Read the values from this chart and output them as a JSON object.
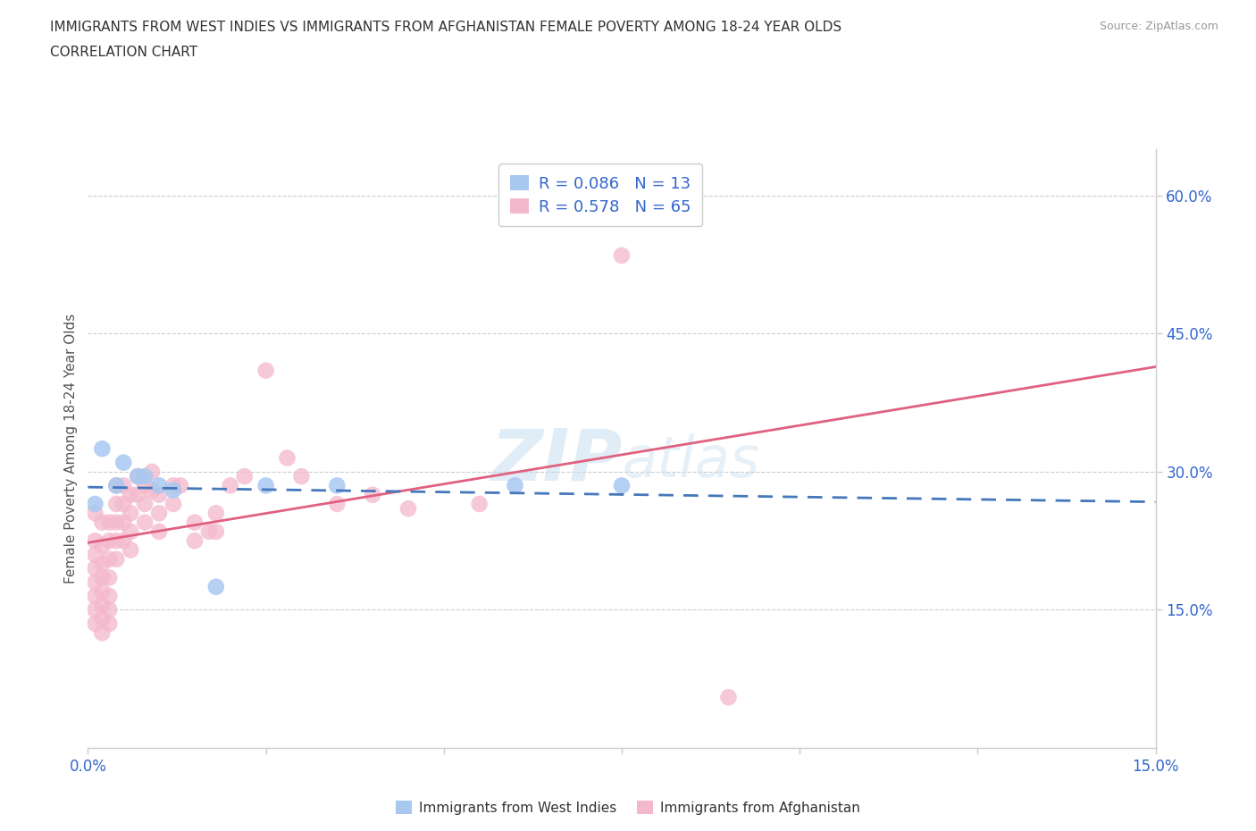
{
  "title_line1": "IMMIGRANTS FROM WEST INDIES VS IMMIGRANTS FROM AFGHANISTAN FEMALE POVERTY AMONG 18-24 YEAR OLDS",
  "title_line2": "CORRELATION CHART",
  "source": "Source: ZipAtlas.com",
  "ylabel": "Female Poverty Among 18-24 Year Olds",
  "xlim": [
    0.0,
    0.15
  ],
  "ylim": [
    0.0,
    0.65
  ],
  "xtick_positions": [
    0.0,
    0.025,
    0.05,
    0.075,
    0.1,
    0.125,
    0.15
  ],
  "xtick_labels": [
    "0.0%",
    "",
    "",
    "",
    "",
    "",
    "15.0%"
  ],
  "ytick_positions": [
    0.15,
    0.3,
    0.45,
    0.6
  ],
  "ytick_labels": [
    "15.0%",
    "30.0%",
    "45.0%",
    "60.0%"
  ],
  "west_indies_color": "#a8c8f0",
  "afghanistan_color": "#f4b8cc",
  "west_indies_line_color": "#4477bb",
  "afghanistan_line_color": "#e06080",
  "legend_color": "#3366cc",
  "R_west_indies": 0.086,
  "N_west_indies": 13,
  "R_afghanistan": 0.578,
  "N_afghanistan": 65,
  "west_indies_scatter": [
    [
      0.001,
      0.265
    ],
    [
      0.002,
      0.325
    ],
    [
      0.004,
      0.285
    ],
    [
      0.005,
      0.31
    ],
    [
      0.007,
      0.295
    ],
    [
      0.008,
      0.295
    ],
    [
      0.01,
      0.285
    ],
    [
      0.012,
      0.28
    ],
    [
      0.018,
      0.175
    ],
    [
      0.025,
      0.285
    ],
    [
      0.06,
      0.285
    ],
    [
      0.075,
      0.285
    ],
    [
      0.035,
      0.285
    ]
  ],
  "afghanistan_scatter": [
    [
      0.001,
      0.255
    ],
    [
      0.001,
      0.225
    ],
    [
      0.001,
      0.21
    ],
    [
      0.001,
      0.195
    ],
    [
      0.001,
      0.18
    ],
    [
      0.001,
      0.165
    ],
    [
      0.001,
      0.15
    ],
    [
      0.001,
      0.135
    ],
    [
      0.002,
      0.245
    ],
    [
      0.002,
      0.22
    ],
    [
      0.002,
      0.2
    ],
    [
      0.002,
      0.185
    ],
    [
      0.002,
      0.17
    ],
    [
      0.002,
      0.155
    ],
    [
      0.002,
      0.14
    ],
    [
      0.002,
      0.125
    ],
    [
      0.003,
      0.245
    ],
    [
      0.003,
      0.225
    ],
    [
      0.003,
      0.205
    ],
    [
      0.003,
      0.185
    ],
    [
      0.003,
      0.165
    ],
    [
      0.003,
      0.15
    ],
    [
      0.003,
      0.135
    ],
    [
      0.004,
      0.285
    ],
    [
      0.004,
      0.265
    ],
    [
      0.004,
      0.245
    ],
    [
      0.004,
      0.225
    ],
    [
      0.004,
      0.205
    ],
    [
      0.005,
      0.285
    ],
    [
      0.005,
      0.265
    ],
    [
      0.005,
      0.245
    ],
    [
      0.005,
      0.225
    ],
    [
      0.006,
      0.275
    ],
    [
      0.006,
      0.255
    ],
    [
      0.006,
      0.235
    ],
    [
      0.006,
      0.215
    ],
    [
      0.007,
      0.295
    ],
    [
      0.007,
      0.275
    ],
    [
      0.008,
      0.285
    ],
    [
      0.008,
      0.265
    ],
    [
      0.008,
      0.245
    ],
    [
      0.009,
      0.3
    ],
    [
      0.009,
      0.28
    ],
    [
      0.01,
      0.275
    ],
    [
      0.01,
      0.255
    ],
    [
      0.01,
      0.235
    ],
    [
      0.012,
      0.285
    ],
    [
      0.012,
      0.265
    ],
    [
      0.013,
      0.285
    ],
    [
      0.015,
      0.245
    ],
    [
      0.015,
      0.225
    ],
    [
      0.017,
      0.235
    ],
    [
      0.018,
      0.255
    ],
    [
      0.018,
      0.235
    ],
    [
      0.02,
      0.285
    ],
    [
      0.022,
      0.295
    ],
    [
      0.025,
      0.41
    ],
    [
      0.028,
      0.315
    ],
    [
      0.03,
      0.295
    ],
    [
      0.035,
      0.265
    ],
    [
      0.04,
      0.275
    ],
    [
      0.045,
      0.26
    ],
    [
      0.055,
      0.265
    ],
    [
      0.075,
      0.535
    ],
    [
      0.09,
      0.055
    ]
  ]
}
